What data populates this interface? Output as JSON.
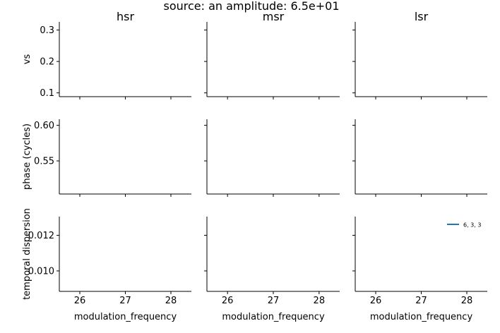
{
  "figure": {
    "title": "source: an amplitude: 6.5e+01"
  },
  "chart_data": {
    "type": "line",
    "title": "source: an amplitude: 6.5e+01",
    "columns": [
      "hsr",
      "msr",
      "lsr"
    ],
    "xlabel": "modulation_frequency",
    "xlim": [
      25.55,
      28.45
    ],
    "xticks": [
      26,
      27,
      28
    ],
    "rows": [
      {
        "ylabel": "vs",
        "ylim": [
          0.088,
          0.326
        ],
        "yticks": [
          0.1,
          0.2,
          0.3
        ],
        "ytick_labels": [
          "0.1",
          "0.2",
          "0.3"
        ]
      },
      {
        "ylabel": "phase (cycles)",
        "ylim": [
          0.5035,
          0.6085
        ],
        "yticks": [
          0.55,
          0.6
        ],
        "ytick_labels": [
          "0.55",
          "0.60"
        ]
      },
      {
        "ylabel": "temporal dispersion",
        "ylim": [
          0.00885,
          0.01305
        ],
        "yticks": [
          0.01,
          0.012
        ],
        "ytick_labels": [
          "0.010",
          "0.012"
        ]
      }
    ],
    "legend": {
      "location": "top-right",
      "panel": "temporal dispersion / lsr",
      "entries": [
        {
          "label": "6, 3, 3",
          "color": "#1f77b4"
        }
      ]
    },
    "series": [],
    "grid": false
  }
}
